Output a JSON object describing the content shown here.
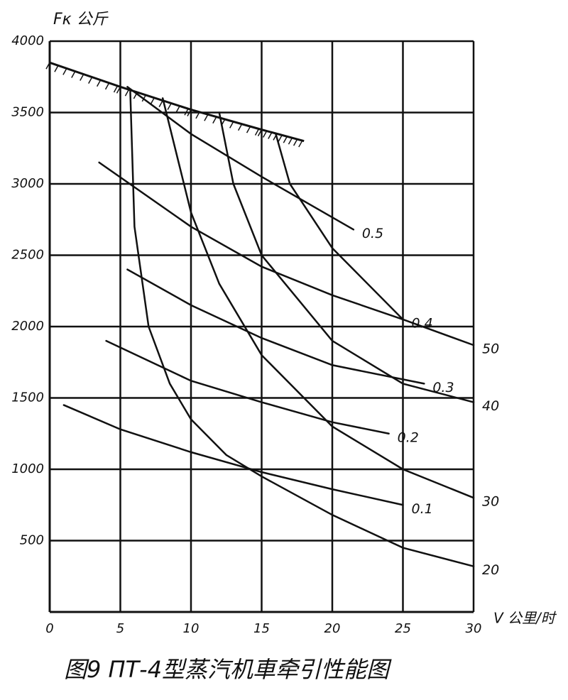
{
  "chart_data": {
    "type": "line",
    "title": "图9 ПТ-4型蒸汽机車牵引性能图",
    "y_label": "Fκ 公斤",
    "x_label": "V 公里/时",
    "xlim": [
      0,
      30
    ],
    "xticks": [
      0,
      5,
      10,
      15,
      20,
      25,
      30
    ],
    "ylim": [
      0,
      4000
    ],
    "yticks": [
      500,
      1000,
      1500,
      2000,
      2500,
      3000,
      3500,
      4000
    ],
    "grid": true,
    "color": "#111111",
    "limit_line": {
      "x": [
        0,
        5,
        10,
        15,
        18
      ],
      "values": [
        3850,
        3680,
        3520,
        3380,
        3300
      ]
    },
    "series": [
      {
        "name": "0.5",
        "x": [
          5.5,
          10,
          15,
          21.5
        ],
        "values": [
          3680,
          3350,
          3050,
          2680
        ]
      },
      {
        "name": "0.4",
        "x": [
          3.5,
          10,
          15,
          20,
          25
        ],
        "values": [
          3150,
          2700,
          2420,
          2220,
          2050
        ]
      },
      {
        "name": "0.3",
        "x": [
          5.5,
          10,
          15,
          20,
          26.5
        ],
        "values": [
          2400,
          2150,
          1920,
          1730,
          1600
        ]
      },
      {
        "name": "0.2",
        "x": [
          4,
          10,
          15,
          20,
          24
        ],
        "values": [
          1900,
          1620,
          1470,
          1330,
          1250
        ]
      },
      {
        "name": "0.1",
        "x": [
          1,
          5,
          10,
          15,
          20,
          25
        ],
        "values": [
          1450,
          1280,
          1120,
          980,
          860,
          750
        ]
      },
      {
        "name": "20",
        "x": [
          5.7,
          6,
          7,
          8.5,
          10,
          12.5,
          15,
          20,
          25,
          30
        ],
        "values": [
          3650,
          2700,
          2000,
          1600,
          1350,
          1100,
          950,
          680,
          450,
          320
        ]
      },
      {
        "name": "30",
        "x": [
          8,
          10,
          12,
          15,
          20,
          25,
          30
        ],
        "values": [
          3600,
          2800,
          2300,
          1800,
          1300,
          1000,
          800
        ]
      },
      {
        "name": "40",
        "x": [
          12,
          13,
          15,
          20,
          25,
          30
        ],
        "values": [
          3500,
          3000,
          2500,
          1900,
          1600,
          1470
        ]
      },
      {
        "name": "50",
        "x": [
          16,
          17,
          20,
          25,
          30
        ],
        "values": [
          3350,
          3000,
          2550,
          2050,
          1870
        ]
      }
    ]
  }
}
